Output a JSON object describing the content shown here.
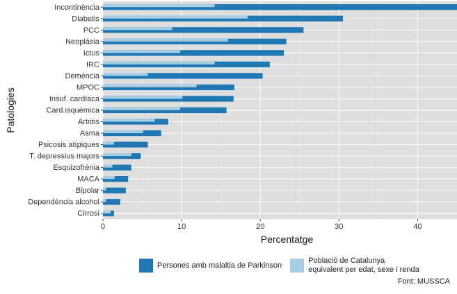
{
  "chart_data": {
    "type": "bar",
    "orientation": "horizontal",
    "categories": [
      "Incontinència",
      "Diabetis",
      "PCC",
      "Neoplàsia",
      "Ictus",
      "IRC",
      "Demència",
      "MPOC",
      "Insuf. cardíaca",
      "Card.isquèmica",
      "Artritis",
      "Asma",
      "Psicosis atípiques",
      "T. depressius majors",
      "Esquizofrènia",
      "MACA",
      "Bipolar",
      "Dependència alcohol",
      "Cirrosi"
    ],
    "series": [
      {
        "name": "Persones amb malaltia de Parkinson",
        "color": "#1f78b4",
        "values": [
          45.5,
          30.5,
          25.5,
          23.3,
          23.0,
          21.2,
          20.3,
          16.7,
          16.6,
          15.7,
          8.3,
          7.4,
          5.7,
          4.8,
          3.6,
          3.2,
          2.9,
          2.2,
          1.4
        ]
      },
      {
        "name": "Població de Catalunya\nequivalent per edat, sexe i renda",
        "color": "#a6cee3",
        "values": [
          14.2,
          18.4,
          8.8,
          15.9,
          9.8,
          14.2,
          5.7,
          11.9,
          10.1,
          9.8,
          6.6,
          5.1,
          1.4,
          3.6,
          1.2,
          1.5,
          0.4,
          0.4,
          1.0
        ]
      }
    ],
    "xlabel": "Percentatge",
    "ylabel": "Patologies",
    "xlim": [
      0,
      45
    ],
    "xticks": [
      0,
      10,
      20,
      30,
      40
    ],
    "grid": true,
    "legend_position": "bottom"
  },
  "source": "Font: MUSSCA"
}
